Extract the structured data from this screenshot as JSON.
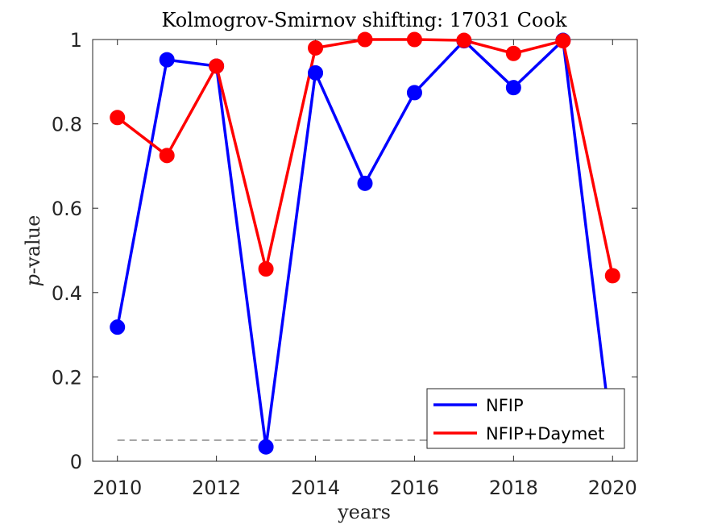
{
  "chart_data": {
    "type": "line",
    "title": "Kolmogrov-Smirnov shifting: 17031 Cook",
    "xlabel": "years",
    "ylabel_prefix": "p",
    "ylabel_suffix": "-value",
    "xlim": [
      2009.5,
      2020.5
    ],
    "ylim": [
      0,
      1
    ],
    "xticks": [
      2010,
      2012,
      2014,
      2016,
      2018,
      2020
    ],
    "xtick_labels": [
      "2010",
      "2012",
      "2014",
      "2016",
      "2018",
      "2020"
    ],
    "yticks": [
      0,
      0.2,
      0.4,
      0.6,
      0.8,
      1
    ],
    "ytick_labels": [
      "0",
      "0.2",
      "0.4",
      "0.6",
      "0.8",
      "1"
    ],
    "grid": false,
    "legend_position": "bottom-right",
    "reference_line": {
      "y": 0.05,
      "x_from": 2010,
      "x_to": 2020,
      "style": "dashed",
      "color": "#808080"
    },
    "series": [
      {
        "name": "NFIP",
        "color": "#0000ff",
        "x": [
          2010,
          2011,
          2012,
          2013,
          2014,
          2015,
          2016,
          2017,
          2018,
          2019,
          2020
        ],
        "values": [
          0.318,
          0.952,
          0.937,
          0.034,
          0.921,
          0.659,
          0.874,
          0.997,
          0.886,
          0.998,
          0.04
        ],
        "markers": [
          true,
          true,
          true,
          true,
          true,
          true,
          true,
          true,
          true,
          true,
          false
        ]
      },
      {
        "name": "NFIP+Daymet",
        "color": "#ff0000",
        "x": [
          2010,
          2011,
          2012,
          2013,
          2014,
          2015,
          2016,
          2017,
          2018,
          2019,
          2020
        ],
        "values": [
          0.815,
          0.725,
          0.937,
          0.456,
          0.98,
          1.0,
          1.0,
          0.998,
          0.967,
          0.997,
          0.44
        ],
        "markers": [
          true,
          true,
          true,
          true,
          true,
          true,
          true,
          true,
          true,
          true,
          true
        ]
      }
    ]
  }
}
